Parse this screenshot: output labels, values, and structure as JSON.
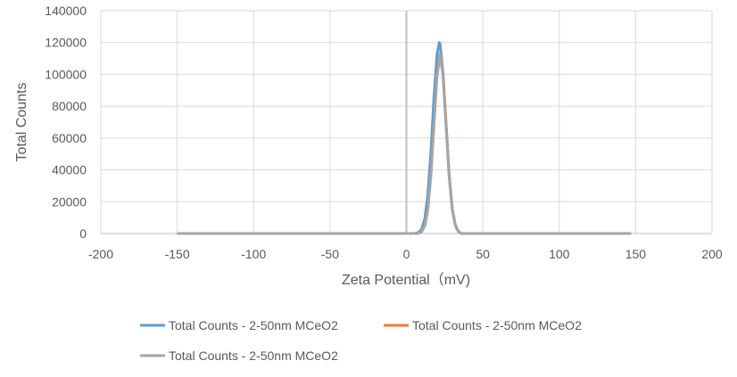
{
  "chart_data": {
    "type": "line",
    "title": "",
    "xlabel": "Zeta Potential（mV)",
    "ylabel": "Total Counts",
    "xlim": [
      -200,
      200
    ],
    "ylim": [
      0,
      140000
    ],
    "xticks": [
      -200,
      -150,
      -100,
      -50,
      0,
      50,
      100,
      150,
      200
    ],
    "yticks": [
      0,
      20000,
      40000,
      60000,
      80000,
      100000,
      120000,
      140000
    ],
    "grid": true,
    "legend_position": "bottom",
    "series": [
      {
        "name": "Total Counts - 2-50nm MCeO2",
        "color": "#5B9BD5",
        "x": [
          -150,
          5,
          8,
          10,
          12,
          14,
          16,
          18,
          20,
          21.5,
          22,
          24,
          26,
          28,
          30,
          32,
          34,
          36,
          147
        ],
        "y": [
          0,
          0,
          690,
          2800,
          9300,
          24400,
          50900,
          84800,
          112600,
          120000,
          119200,
          100500,
          67600,
          36200,
          15500,
          5300,
          1400,
          0,
          0
        ]
      },
      {
        "name": "Total Counts - 2-50nm MCeO2",
        "color": "#ED7D31",
        "x": [
          -150,
          6,
          8,
          10,
          12,
          14,
          16,
          18,
          20,
          22,
          24,
          26,
          28,
          30,
          32,
          34,
          36,
          147
        ],
        "y": [
          0,
          0,
          250,
          1250,
          5000,
          15300,
          36700,
          68600,
          99700,
          113000,
          99700,
          68600,
          36700,
          15300,
          5000,
          1250,
          0,
          0
        ]
      },
      {
        "name": "Total Counts - 2-50nm MCeO2",
        "color": "#A5A5A5",
        "x": [
          -150,
          6,
          8,
          10,
          12,
          14,
          16,
          18,
          20,
          22,
          24,
          26,
          28,
          30,
          32,
          34,
          36,
          147
        ],
        "y": [
          0,
          0,
          250,
          1240,
          4950,
          15200,
          36400,
          68000,
          98800,
          112000,
          98800,
          68000,
          36400,
          15200,
          4950,
          1240,
          0,
          0
        ]
      }
    ]
  }
}
